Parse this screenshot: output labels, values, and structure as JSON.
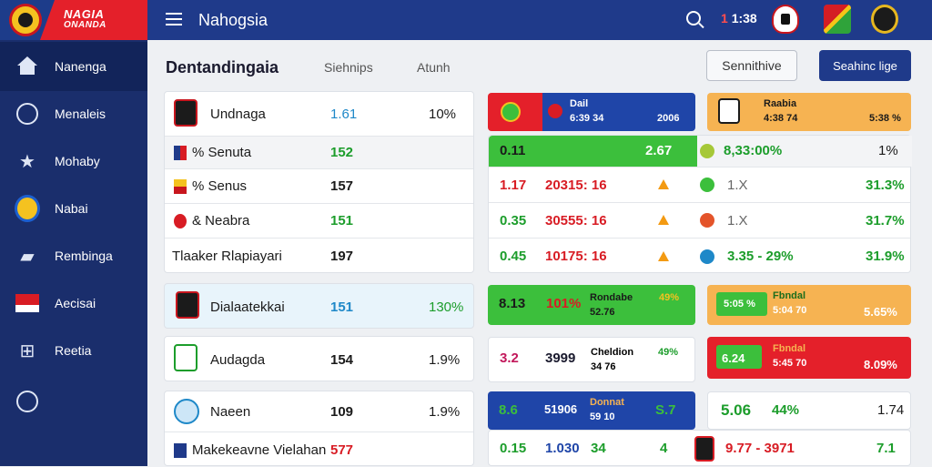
{
  "logo": {
    "line1": "NAGIA",
    "line2": "ONANDA"
  },
  "topbar": {
    "title": "Nahogsia",
    "score_prefix": "1",
    "score": "1:38"
  },
  "sidebar": {
    "items": [
      {
        "label": "Nanenga",
        "icon": "home-icon"
      },
      {
        "label": "Menaleis",
        "icon": "clock-icon"
      },
      {
        "label": "Mohaby",
        "icon": "star-icon"
      },
      {
        "label": "Nabai",
        "icon": "team-badge-icon"
      },
      {
        "label": "Rembinga",
        "icon": "jersey-icon"
      },
      {
        "label": "Aecisai",
        "icon": "flag-icon"
      },
      {
        "label": "Reetia",
        "icon": "grid-icon"
      },
      {
        "label": "",
        "icon": "clock-icon"
      }
    ]
  },
  "main": {
    "title": "Dentandingaia",
    "tabs": [
      "Siehnips",
      "Atunh"
    ],
    "button_outline": "Sennithive",
    "button_primary": "Seahinc lige"
  },
  "left": {
    "card1": {
      "header": {
        "name": "Undnaga",
        "v1": "1.61",
        "v2": "10%"
      },
      "rows": [
        {
          "name": "% Senuta",
          "v1": "152"
        },
        {
          "name": "% Senus",
          "v1": "157"
        },
        {
          "name": "& Neabra",
          "v1": "151"
        },
        {
          "name": "Tlaaker Rlapiayari",
          "v1": "197"
        }
      ]
    },
    "card2": {
      "name": "Dialaatekkai",
      "v1": "151",
      "v2": "130%"
    },
    "card3": {
      "name": "Audagda",
      "v1": "154",
      "v2": "1.9%"
    },
    "card4": {
      "rows": [
        {
          "name": "Naeen",
          "v1": "109",
          "v2": "1.9%"
        },
        {
          "name": "Makekeavne Vielahan",
          "v1": "577"
        }
      ]
    }
  },
  "right": {
    "top_red": {
      "title": "Dail",
      "sub": "6:39 34",
      "val": "2006"
    },
    "top_orange": {
      "title": "Raabia",
      "sub": "4:38 74",
      "val": "5:38 %"
    },
    "green_bar": {
      "a": "0.11",
      "b": "2.67",
      "c": "8,33:00%",
      "d": "1%"
    },
    "rows": [
      {
        "a": "1.17",
        "b": "20315: 16",
        "c": "1.X",
        "d": "31.3%"
      },
      {
        "a": "0.35",
        "b": "30555: 16",
        "c": "1.X",
        "d": "31.7%"
      },
      {
        "a": "0.45",
        "b": "10175: 16",
        "c": "3.35 - 29%",
        "d": "31.9%"
      }
    ],
    "row5": {
      "a": "8.13",
      "b": "101%",
      "t": "Rondabe",
      "s": "52.76",
      "p": "49%",
      "o_a": "5:05 %",
      "o_t": "Fbndal",
      "o_s": "5:04 70",
      "o_p": "5.65%"
    },
    "row6": {
      "a": "3.2",
      "b": "3999",
      "t": "Cheldion",
      "s": "34 76",
      "p": "49%",
      "r_a": "6.24",
      "r_t": "Fbndal",
      "r_s": "5:45 70",
      "r_p": "8.09%"
    },
    "row7": {
      "a": "8.6",
      "b": "51906",
      "t": "Donnat",
      "s": "59 10",
      "c": "S.7",
      "w_a": "5.06",
      "w_b": "44%",
      "w_c": "1.74"
    },
    "row8": {
      "a": "0.15",
      "b": "1.030",
      "c": "34",
      "d": "4",
      "e": "9.77 - 3971",
      "f": "7.1"
    }
  },
  "colors": {
    "navy": "#1f3a8a",
    "red": "#e4202a",
    "green": "#3cbf3c",
    "orange": "#f6b352",
    "blue": "#1f45a8"
  }
}
